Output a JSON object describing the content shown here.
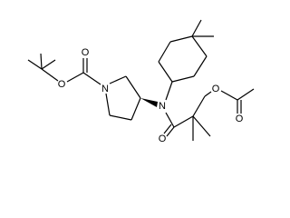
{
  "atoms": [
    {
      "label": "O"
    },
    {
      "label": "O"
    },
    {
      "label": "N"
    },
    {
      "label": "N"
    },
    {
      "label": "O"
    },
    {
      "label": "O"
    },
    {
      "label": "O"
    }
  ]
}
